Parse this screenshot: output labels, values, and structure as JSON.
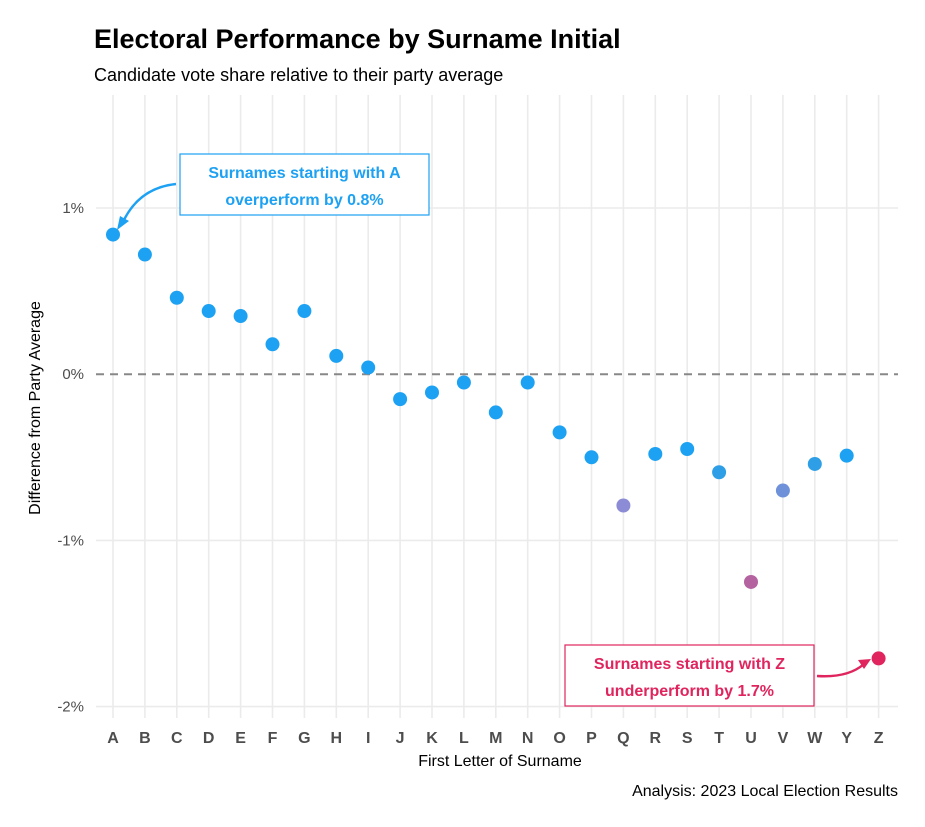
{
  "chart_data": {
    "type": "scatter",
    "title": "Electoral Performance by Surname Initial",
    "subtitle": "Candidate vote share relative to their party average",
    "xlabel": "First Letter of Surname",
    "ylabel": "Difference from Party Average",
    "caption": "Analysis: 2023 Local Election Results",
    "y_tick_labels": [
      "1%",
      "0%",
      "-1%",
      "-2%"
    ],
    "y_tick_values": [
      1,
      0,
      -1,
      -2
    ],
    "ylim": [
      -2.0,
      1.7
    ],
    "grid": true,
    "reference_line": {
      "y": 0,
      "style": "dashed"
    },
    "categories": [
      "A",
      "B",
      "C",
      "D",
      "E",
      "F",
      "G",
      "H",
      "I",
      "J",
      "K",
      "L",
      "M",
      "N",
      "O",
      "P",
      "Q",
      "R",
      "S",
      "T",
      "U",
      "V",
      "W",
      "Y",
      "Z"
    ],
    "values": [
      0.84,
      0.72,
      0.46,
      0.38,
      0.35,
      0.18,
      0.38,
      0.11,
      0.04,
      -0.15,
      -0.11,
      -0.05,
      -0.23,
      -0.05,
      -0.35,
      -0.5,
      -0.79,
      -0.48,
      -0.45,
      -0.59,
      -1.25,
      -0.7,
      -0.54,
      -0.49,
      -1.71
    ],
    "point_colors": [
      "#1DA1F2",
      "#1DA1F2",
      "#1DA1F2",
      "#1DA1F2",
      "#1DA1F2",
      "#1DA1F2",
      "#1DA1F2",
      "#1DA1F2",
      "#1DA1F2",
      "#1DA1F2",
      "#1DA1F2",
      "#1DA1F2",
      "#1DA1F2",
      "#1DA1F2",
      "#1DA1F2",
      "#1DA1F2",
      "#8B8BD6",
      "#1DA1F2",
      "#1DA1F2",
      "#2E9FE6",
      "#B462A0",
      "#6E91DA",
      "#2E9FE6",
      "#1DA1F2",
      "#E0245E"
    ],
    "annotations": [
      {
        "lines": [
          "Surnames starting with A",
          "overperform by 0.8%"
        ],
        "color": "#1DA1F2",
        "target": "A"
      },
      {
        "lines": [
          "Surnames starting with Z",
          "underperform by 1.7%"
        ],
        "color": "#E0245E",
        "target": "Z"
      }
    ]
  }
}
